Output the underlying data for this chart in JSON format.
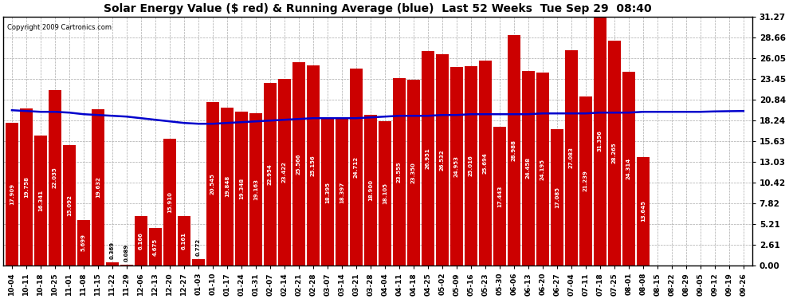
{
  "title": "Solar Energy Value ($ red) & Running Average (blue)  Last 52 Weeks  Tue Sep 29  08:40",
  "copyright": "Copyright 2009 Cartronics.com",
  "bar_color": "#cc0000",
  "line_color": "#0000cc",
  "background_color": "#ffffff",
  "grid_color": "#aaaaaa",
  "ylim": [
    0,
    31.27
  ],
  "yticks": [
    0.0,
    2.61,
    5.21,
    7.82,
    10.42,
    13.03,
    15.63,
    18.24,
    20.84,
    23.45,
    26.05,
    28.66,
    31.27
  ],
  "categories": [
    "10-04",
    "10-11",
    "10-18",
    "10-25",
    "11-01",
    "11-08",
    "11-15",
    "11-22",
    "11-29",
    "12-06",
    "12-13",
    "12-20",
    "12-27",
    "01-03",
    "01-10",
    "01-17",
    "01-24",
    "01-31",
    "02-07",
    "02-14",
    "02-21",
    "02-28",
    "03-07",
    "03-14",
    "03-21",
    "03-28",
    "04-04",
    "04-11",
    "04-18",
    "04-25",
    "05-02",
    "05-09",
    "05-16",
    "05-23",
    "05-30",
    "06-06",
    "06-13",
    "06-20",
    "06-27",
    "07-04",
    "07-11",
    "07-18",
    "07-25",
    "08-01",
    "08-08",
    "08-15",
    "08-22",
    "08-29",
    "09-05",
    "09-12",
    "09-19",
    "09-26"
  ],
  "values": [
    17.909,
    19.758,
    16.341,
    22.035,
    15.092,
    5.699,
    19.632,
    0.369,
    0.089,
    6.166,
    4.675,
    15.91,
    6.161,
    0.772,
    20.545,
    19.848,
    19.348,
    19.163,
    22.954,
    23.422,
    25.566,
    25.156,
    18.395,
    18.397,
    24.712,
    18.9,
    18.105,
    23.555,
    23.35,
    26.951,
    26.532,
    24.953,
    25.016,
    25.694,
    17.443,
    28.988,
    24.458,
    24.195,
    17.085,
    27.083,
    21.239,
    31.356,
    28.265,
    24.314,
    13.645,
    0.0,
    0.0,
    0.0,
    0.0,
    0.0,
    0.0,
    0.0
  ],
  "avg_values": [
    19.5,
    19.4,
    19.3,
    19.3,
    19.2,
    19.0,
    18.9,
    18.8,
    18.7,
    18.5,
    18.3,
    18.1,
    17.9,
    17.8,
    17.8,
    17.9,
    18.0,
    18.1,
    18.2,
    18.3,
    18.4,
    18.5,
    18.5,
    18.5,
    18.5,
    18.6,
    18.7,
    18.8,
    18.8,
    18.8,
    18.9,
    18.9,
    19.0,
    19.0,
    19.0,
    19.0,
    19.0,
    19.1,
    19.1,
    19.1,
    19.1,
    19.2,
    19.2,
    19.2,
    19.3,
    19.3,
    19.3,
    19.3,
    19.3,
    19.35,
    19.38,
    19.4
  ]
}
